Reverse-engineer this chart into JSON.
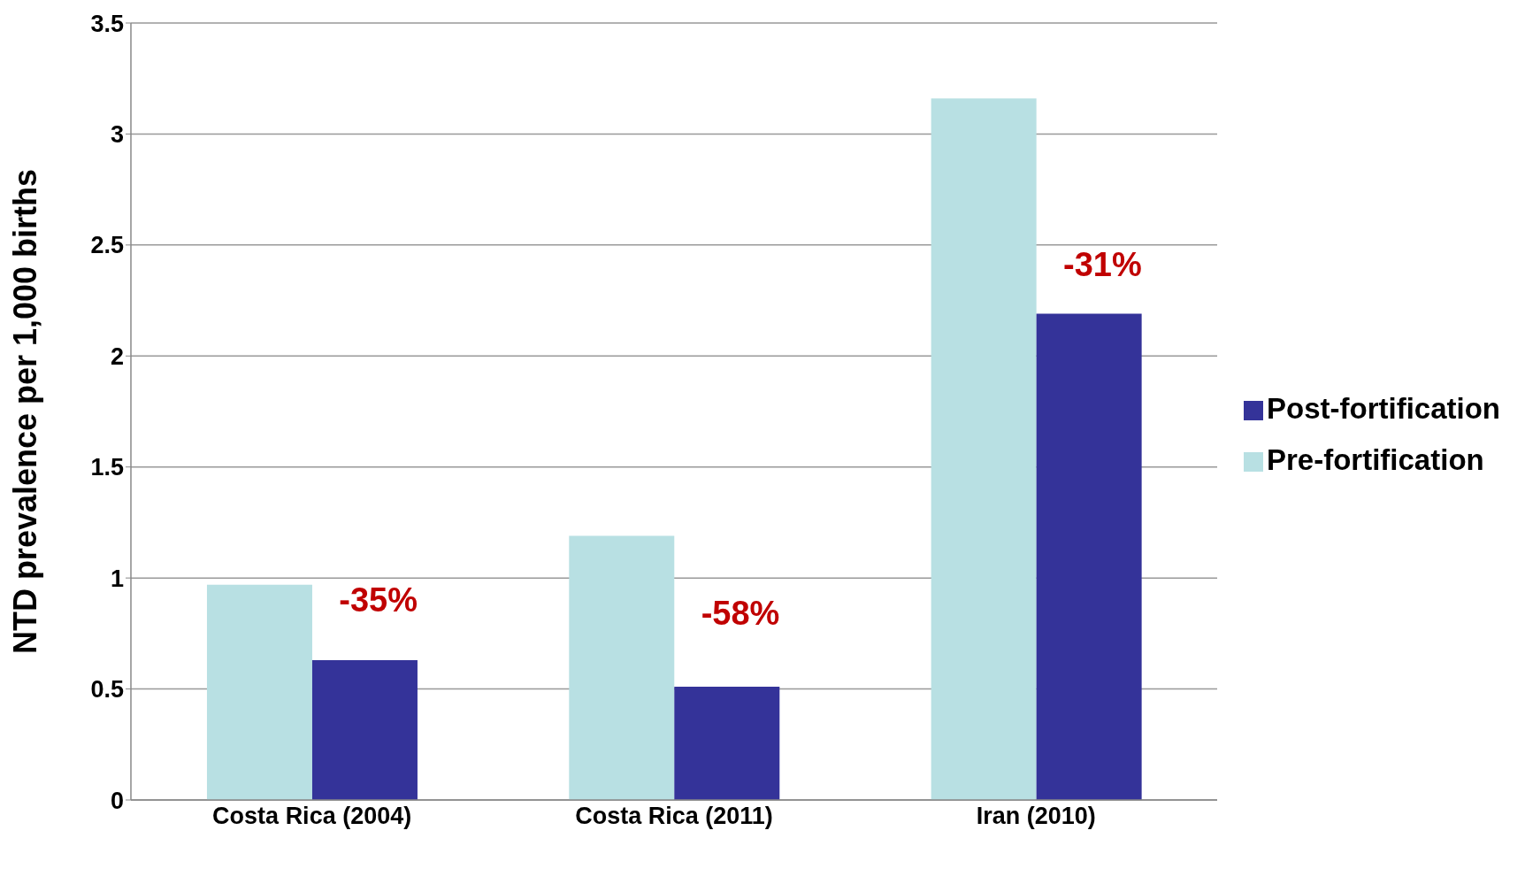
{
  "chart_data": {
    "type": "bar",
    "ylabel": "NTD  prevalence per 1,000 births",
    "categories": [
      "Costa Rica (2004)",
      "Costa Rica (2011)",
      "Iran (2010)"
    ],
    "series": [
      {
        "name": "Pre-fortification",
        "color": "#b8e0e3",
        "values": [
          0.97,
          1.19,
          3.16
        ]
      },
      {
        "name": "Post-fortification",
        "color": "#343399",
        "values": [
          0.63,
          0.51,
          2.19
        ]
      }
    ],
    "ylim": [
      0,
      3.5
    ],
    "yticks": [
      0,
      0.5,
      1,
      1.5,
      2,
      2.5,
      3,
      3.5
    ],
    "grid": "y",
    "legend": "right",
    "annotations": [
      {
        "text": "-35%",
        "x": "Costa Rica (2004)",
        "y": 0.9
      },
      {
        "text": "-58%",
        "x": "Costa Rica (2011)",
        "y": 0.84
      },
      {
        "text": "-31%",
        "x": "Iran (2010)",
        "y": 2.41
      }
    ]
  }
}
